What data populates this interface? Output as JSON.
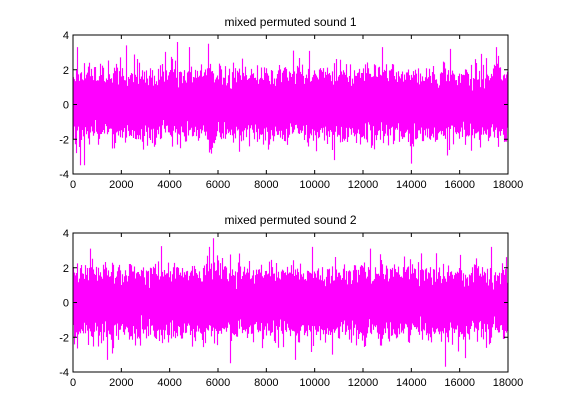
{
  "chart_data": [
    {
      "type": "line",
      "title": "mixed permuted sound 1",
      "xlabel": "",
      "ylabel": "",
      "xlim": [
        0,
        18000
      ],
      "ylim": [
        -4,
        4
      ],
      "xticks": [
        0,
        2000,
        4000,
        6000,
        8000,
        10000,
        12000,
        14000,
        16000,
        18000
      ],
      "yticks": [
        -4,
        -2,
        0,
        2,
        4
      ],
      "grid": false,
      "color": "#ff00ff",
      "samples": 18000,
      "peaks": [
        {
          "x": 150,
          "y": 3.3
        },
        {
          "x": 300,
          "y": -3.5
        },
        {
          "x": 450,
          "y": -3.5
        },
        {
          "x": 2200,
          "y": 3.4
        },
        {
          "x": 4300,
          "y": 3.6
        },
        {
          "x": 4800,
          "y": 3.3
        },
        {
          "x": 5600,
          "y": 3.5
        },
        {
          "x": 9100,
          "y": 3.1
        },
        {
          "x": 10800,
          "y": -3.2
        },
        {
          "x": 12800,
          "y": 3.3
        },
        {
          "x": 14000,
          "y": -3.4
        },
        {
          "x": 15600,
          "y": 3.2
        },
        {
          "x": 17500,
          "y": 3.3
        }
      ]
    },
    {
      "type": "line",
      "title": "mixed permuted sound 2",
      "xlabel": "",
      "ylabel": "",
      "xlim": [
        0,
        18000
      ],
      "ylim": [
        -4,
        4
      ],
      "xticks": [
        0,
        2000,
        4000,
        6000,
        8000,
        10000,
        12000,
        14000,
        16000,
        18000
      ],
      "yticks": [
        -4,
        -2,
        0,
        2,
        4
      ],
      "grid": false,
      "color": "#ff00ff",
      "samples": 18000,
      "peaks": [
        {
          "x": 700,
          "y": 3.1
        },
        {
          "x": 1400,
          "y": -3.3
        },
        {
          "x": 5800,
          "y": 3.7
        },
        {
          "x": 6500,
          "y": -3.5
        },
        {
          "x": 9200,
          "y": -3.3
        },
        {
          "x": 9900,
          "y": 3.2
        },
        {
          "x": 12300,
          "y": 3.1
        },
        {
          "x": 15400,
          "y": -3.7
        },
        {
          "x": 16200,
          "y": -3.2
        },
        {
          "x": 17300,
          "y": 3.2
        }
      ]
    }
  ]
}
